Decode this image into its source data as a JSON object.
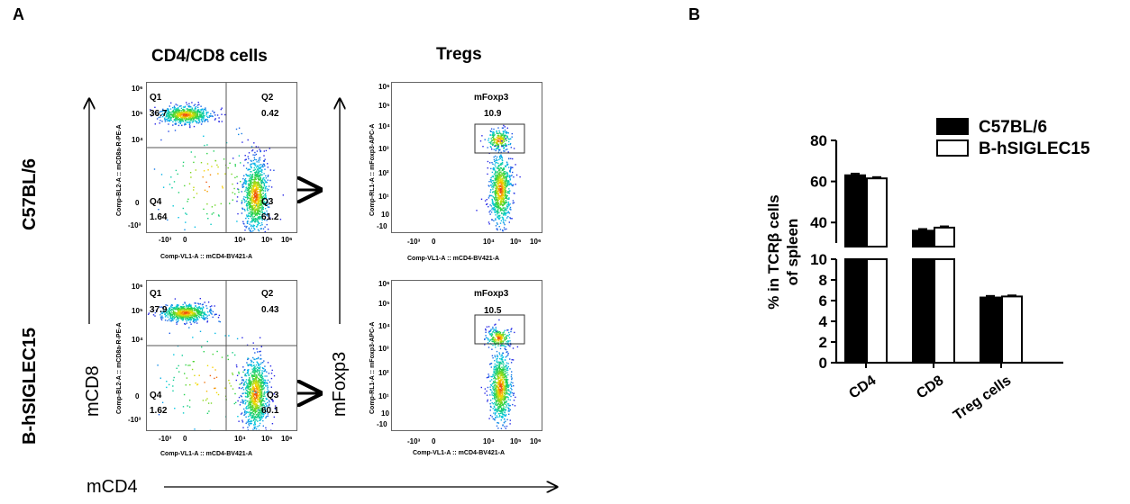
{
  "panel_a": {
    "letter": "A",
    "col_titles": [
      "CD4/CD8 cells",
      "Tregs"
    ],
    "row_labels": [
      "C57BL/6",
      "B-hSIGLEC15"
    ],
    "axis_words": {
      "x": "mCD4",
      "y_left": "mCD8",
      "y_mid": "mFoxp3"
    },
    "flow_axis_labels": {
      "x": "Comp-VL1-A :: mCD4-BV421-A",
      "y_cd8": "Comp-BL2-A :: mCD8a-R-PE-A",
      "y_foxp3": "Comp-RL1-A :: mFoxp3-APC-A"
    },
    "x_ticks": [
      "-10³",
      "0",
      "10⁴",
      "10⁵",
      "10⁶"
    ],
    "y_ticks": [
      "10⁶",
      "10⁵",
      "10⁴",
      "10³",
      "10²",
      "10¹",
      "10",
      "-10"
    ],
    "y_ticks_cd8": [
      "10⁶",
      "10⁵",
      "10⁴",
      "0",
      "-10³"
    ],
    "gate_name": "mFoxp3",
    "samples": [
      {
        "q1": {
          "name": "Q1",
          "value": "36.7"
        },
        "q2": {
          "name": "Q2",
          "value": "0.42"
        },
        "q3": {
          "name": "Q3",
          "value": "61.2"
        },
        "q4": {
          "name": "Q4",
          "value": "1.64"
        },
        "foxp3": "10.9"
      },
      {
        "q1": {
          "name": "Q1",
          "value": "37.9"
        },
        "q2": {
          "name": "Q2",
          "value": "0.43"
        },
        "q3": {
          "name": "Q3",
          "value": "60.1"
        },
        "q4": {
          "name": "Q4",
          "value": "1.62"
        },
        "foxp3": "10.5"
      }
    ]
  },
  "panel_b": {
    "letter": "B"
  },
  "chart_data": {
    "type": "bar",
    "categories": [
      "CD4",
      "CD8",
      "Treg cells"
    ],
    "series": [
      {
        "name": "C57BL/6",
        "values": [
          63,
          36,
          6.3
        ],
        "errors": [
          0.8,
          0.8,
          0.15
        ],
        "color": "#000000"
      },
      {
        "name": "B-hSIGLEC15",
        "values": [
          61.5,
          37.5,
          6.4
        ],
        "errors": [
          0.6,
          0.6,
          0.1
        ],
        "color": "#ffffff"
      }
    ],
    "ylabel": "% in TCRβ cells of spleen",
    "lower_ticks": [
      "0",
      "2",
      "4",
      "6",
      "8",
      "10"
    ],
    "upper_ticks": [
      "40",
      "60",
      "80"
    ],
    "axis_break": [
      10,
      30
    ],
    "ylim": [
      0,
      80
    ],
    "legend_position": "top-right"
  }
}
